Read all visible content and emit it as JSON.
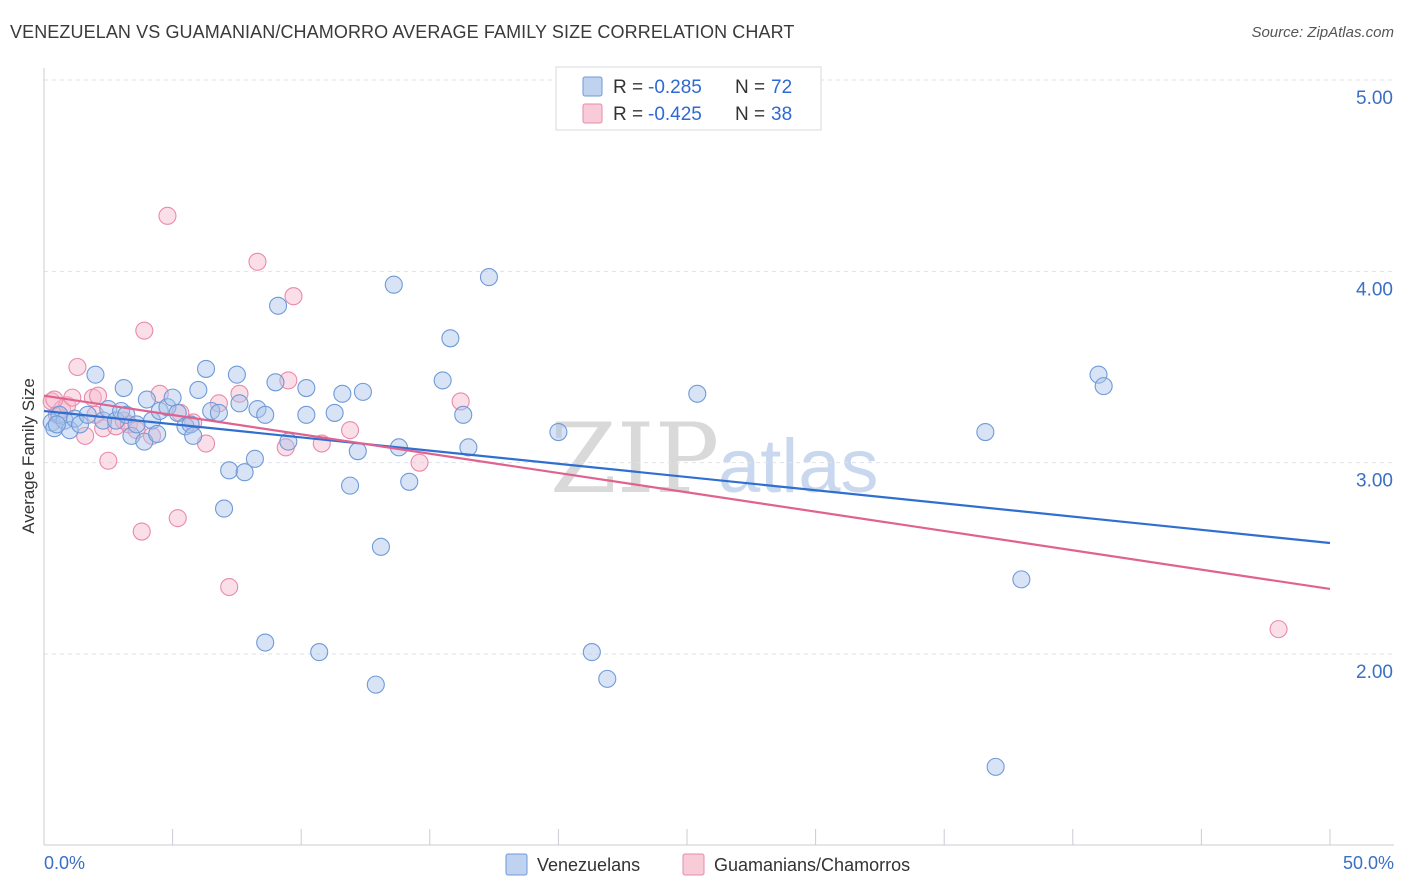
{
  "header": {
    "title": "VENEZUELAN VS GUAMANIAN/CHAMORRO AVERAGE FAMILY SIZE CORRELATION CHART",
    "source": "Source: ZipAtlas.com"
  },
  "watermark": {
    "zip": "ZIP",
    "atlas": "atlas"
  },
  "legend_top": {
    "rows": [
      {
        "r_label": "R = ",
        "r_value": "-0.285",
        "n_label": "N = ",
        "n_value": "72"
      },
      {
        "r_label": "R = ",
        "r_value": "-0.425",
        "n_label": "N = ",
        "n_value": "38"
      }
    ]
  },
  "legend_bottom": {
    "venezuelans": "Venezuelans",
    "guamanians": "Guamanians/Chamorros"
  },
  "colors": {
    "blue_fill": "#a9c4ec",
    "blue_stroke": "#6f9ad8",
    "blue_line": "#2f6fd0",
    "pink_fill": "#f6b9cc",
    "pink_stroke": "#e98aaa",
    "pink_line": "#e0628f",
    "grid": "#dde3ea",
    "axis_text": "#3b6fc4"
  },
  "chart_data": {
    "type": "scatter",
    "title": "VENEZUELAN VS GUAMANIAN/CHAMORRO AVERAGE FAMILY SIZE CORRELATION CHART",
    "xlabel": "",
    "ylabel": "Average Family Size",
    "xlim": [
      0,
      50
    ],
    "ylim": [
      1.0,
      5.15
    ],
    "x_tick_labels": [
      "0.0%",
      "50.0%"
    ],
    "y_ticks": [
      2.0,
      3.0,
      4.0,
      5.0
    ],
    "y_tick_labels": [
      "2.00",
      "3.00",
      "4.00",
      "5.00"
    ],
    "grid": true,
    "series": [
      {
        "name": "Venezuelans",
        "R": -0.285,
        "N": 72,
        "trend": {
          "x0": 0,
          "y0": 3.27,
          "x1": 50,
          "y1": 2.58
        },
        "points": [
          [
            0.3,
            3.21
          ],
          [
            0.4,
            3.18
          ],
          [
            0.6,
            3.25
          ],
          [
            0.8,
            3.22
          ],
          [
            1.0,
            3.17
          ],
          [
            1.2,
            3.23
          ],
          [
            1.4,
            3.2
          ],
          [
            1.7,
            3.25
          ],
          [
            2.0,
            3.46
          ],
          [
            2.3,
            3.22
          ],
          [
            2.5,
            3.28
          ],
          [
            2.8,
            3.22
          ],
          [
            3.0,
            3.27
          ],
          [
            3.1,
            3.39
          ],
          [
            3.2,
            3.25
          ],
          [
            3.4,
            3.14
          ],
          [
            3.6,
            3.2
          ],
          [
            3.9,
            3.11
          ],
          [
            4.0,
            3.33
          ],
          [
            4.2,
            3.22
          ],
          [
            4.4,
            3.15
          ],
          [
            4.5,
            3.27
          ],
          [
            4.8,
            3.29
          ],
          [
            5.0,
            3.34
          ],
          [
            5.2,
            3.26
          ],
          [
            5.5,
            3.19
          ],
          [
            5.7,
            3.2
          ],
          [
            5.8,
            3.14
          ],
          [
            6.0,
            3.38
          ],
          [
            6.3,
            3.49
          ],
          [
            6.5,
            3.27
          ],
          [
            6.8,
            3.26
          ],
          [
            7.0,
            2.76
          ],
          [
            7.2,
            2.96
          ],
          [
            7.6,
            3.31
          ],
          [
            7.5,
            3.46
          ],
          [
            7.8,
            2.95
          ],
          [
            8.2,
            3.02
          ],
          [
            8.3,
            3.28
          ],
          [
            8.6,
            3.25
          ],
          [
            8.6,
            2.06
          ],
          [
            9.0,
            3.42
          ],
          [
            9.1,
            3.82
          ],
          [
            9.5,
            3.11
          ],
          [
            10.2,
            3.39
          ],
          [
            10.2,
            3.25
          ],
          [
            10.7,
            2.01
          ],
          [
            11.3,
            3.26
          ],
          [
            11.6,
            3.36
          ],
          [
            11.9,
            2.88
          ],
          [
            12.2,
            3.06
          ],
          [
            12.4,
            3.37
          ],
          [
            12.9,
            1.84
          ],
          [
            13.1,
            2.56
          ],
          [
            13.6,
            3.93
          ],
          [
            13.8,
            3.08
          ],
          [
            14.2,
            2.9
          ],
          [
            15.5,
            3.43
          ],
          [
            15.8,
            3.65
          ],
          [
            16.3,
            3.25
          ],
          [
            16.5,
            3.08
          ],
          [
            17.3,
            3.97
          ],
          [
            20.0,
            3.16
          ],
          [
            21.3,
            2.01
          ],
          [
            21.9,
            1.87
          ],
          [
            25.4,
            3.36
          ],
          [
            36.6,
            3.16
          ],
          [
            37.0,
            1.41
          ],
          [
            38.0,
            2.39
          ],
          [
            41.0,
            3.46
          ],
          [
            41.2,
            3.4
          ],
          [
            0.5,
            3.2
          ]
        ]
      },
      {
        "name": "Guamanians/Chamorros",
        "R": -0.425,
        "N": 38,
        "trend": {
          "x0": 0,
          "y0": 3.35,
          "x1": 50,
          "y1": 2.34
        },
        "points": [
          [
            0.3,
            3.32
          ],
          [
            0.5,
            3.25
          ],
          [
            0.7,
            3.28
          ],
          [
            0.9,
            3.3
          ],
          [
            1.1,
            3.34
          ],
          [
            1.3,
            3.5
          ],
          [
            1.6,
            3.14
          ],
          [
            1.9,
            3.34
          ],
          [
            2.1,
            3.35
          ],
          [
            2.3,
            3.18
          ],
          [
            2.5,
            3.01
          ],
          [
            2.8,
            3.19
          ],
          [
            3.1,
            3.22
          ],
          [
            3.3,
            3.2
          ],
          [
            3.6,
            3.17
          ],
          [
            3.8,
            2.64
          ],
          [
            3.9,
            3.69
          ],
          [
            4.2,
            3.14
          ],
          [
            4.5,
            3.36
          ],
          [
            4.8,
            4.29
          ],
          [
            5.2,
            2.71
          ],
          [
            5.3,
            3.26
          ],
          [
            5.8,
            3.21
          ],
          [
            6.3,
            3.1
          ],
          [
            6.8,
            3.31
          ],
          [
            7.2,
            2.35
          ],
          [
            7.6,
            3.36
          ],
          [
            8.3,
            4.05
          ],
          [
            9.4,
            3.08
          ],
          [
            9.5,
            3.43
          ],
          [
            9.7,
            3.87
          ],
          [
            10.8,
            3.1
          ],
          [
            11.9,
            3.17
          ],
          [
            14.6,
            3.0
          ],
          [
            16.2,
            3.32
          ],
          [
            48.0,
            2.13
          ],
          [
            0.4,
            3.33
          ],
          [
            2.0,
            3.25
          ]
        ]
      }
    ]
  }
}
